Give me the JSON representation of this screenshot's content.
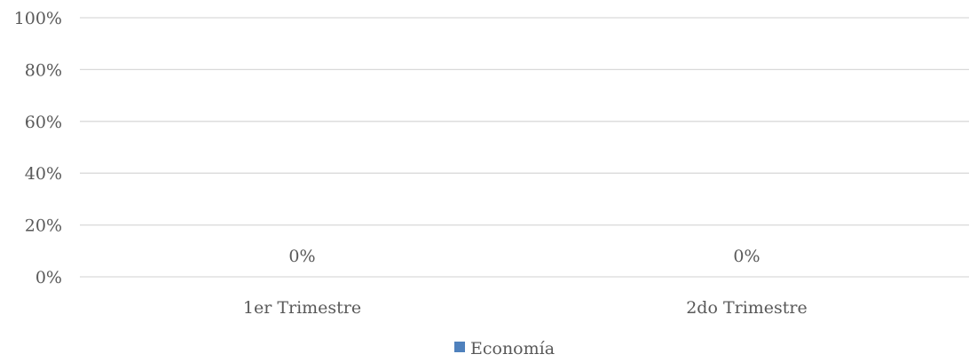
{
  "chart_data": {
    "type": "bar",
    "categories": [
      "1er Trimestre",
      "2do Trimestre"
    ],
    "series": [
      {
        "name": "Economía",
        "values": [
          0,
          0
        ],
        "value_labels": [
          "0%",
          "0%"
        ]
      }
    ],
    "ylim": [
      0,
      1
    ],
    "yticks": [
      0,
      0.2,
      0.4,
      0.6,
      0.8,
      1.0
    ],
    "ytick_labels": [
      "0%",
      "20%",
      "40%",
      "60%",
      "80%",
      "100%"
    ],
    "grid": true,
    "legend_position": "bottom",
    "colors": {
      "series": "#4f81bd",
      "grid": "#d9d9d9",
      "text": "#595959"
    }
  }
}
